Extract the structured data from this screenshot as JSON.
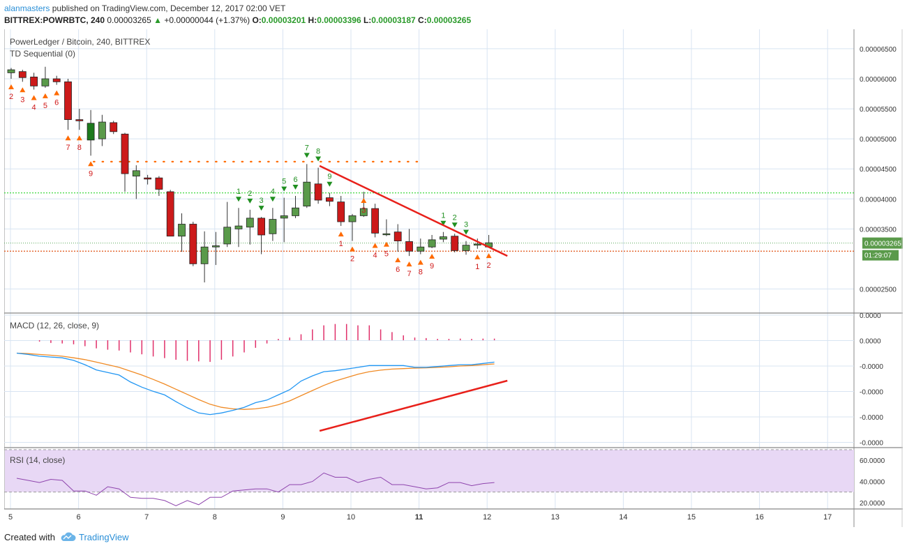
{
  "header": {
    "author": "alanmasters",
    "published_text": "published on TradingView.com, December 12, 2017 02:00 VET",
    "symbol": "BITTREX:POWRBTC, 240",
    "last_price": "0.00003265",
    "change": "+0.00000044 (+1.37%)",
    "o_label": "O:",
    "o_value": "0.00003201",
    "h_label": "H:",
    "h_value": "0.00003396",
    "l_label": "L:",
    "l_value": "0.00003187",
    "c_label": "C:",
    "c_value": "0.00003265"
  },
  "footer": {
    "created_with": "Created with",
    "brand": "TradingView"
  },
  "colors": {
    "up": "#5a9a4a",
    "down": "#cc1a1a",
    "green_dark": "#1d7a1d",
    "macd_line": "#2196f3",
    "signal_line": "#f08a24",
    "histogram": "#e0306a",
    "rsi_line": "#8e44ad",
    "rsi_band": "#e8d8f5",
    "trend": "#e8201a",
    "td_buy": "#ff6a00",
    "td_sell": "#1f8f1f",
    "grid": "#d8e4f2"
  },
  "chart_data": [
    {
      "type": "candlestick",
      "title": "PowerLedger / Bitcoin, 240, BITTREX",
      "indicator_title": "TD Sequential (0)",
      "x_ticks": [
        "5",
        "6",
        "7",
        "8",
        "9",
        "10",
        "11",
        "12",
        "13",
        "14",
        "15",
        "16",
        "17"
      ],
      "y_ticks": [
        "0.00006500",
        "0.00006000",
        "0.00005500",
        "0.00005000",
        "0.00004500",
        "0.00004000",
        "0.00003500",
        "0.00002500"
      ],
      "ylim": [
        2.1e-05,
        6.65e-05
      ],
      "last_price_label": "0.00003265",
      "countdown_label": "01:29:07",
      "candles": [
        {
          "o": 6.1,
          "h": 6.18,
          "l": 6.0,
          "c": 6.15
        },
        {
          "o": 6.12,
          "h": 6.15,
          "l": 5.95,
          "c": 6.02
        },
        {
          "o": 6.03,
          "h": 6.1,
          "l": 5.82,
          "c": 5.88
        },
        {
          "o": 5.88,
          "h": 6.2,
          "l": 5.85,
          "c": 6.0
        },
        {
          "o": 6.0,
          "h": 6.05,
          "l": 5.9,
          "c": 5.95
        },
        {
          "o": 5.95,
          "h": 6.0,
          "l": 5.15,
          "c": 5.32
        },
        {
          "o": 5.32,
          "h": 5.5,
          "l": 5.15,
          "c": 5.3
        },
        {
          "o": 4.98,
          "h": 5.48,
          "l": 4.72,
          "c": 5.26
        },
        {
          "o": 5.0,
          "h": 5.4,
          "l": 4.88,
          "c": 5.28
        },
        {
          "o": 5.27,
          "h": 5.3,
          "l": 5.08,
          "c": 5.12
        },
        {
          "o": 5.08,
          "h": 5.1,
          "l": 4.12,
          "c": 4.42
        },
        {
          "o": 4.38,
          "h": 4.56,
          "l": 4.0,
          "c": 4.47
        },
        {
          "o": 4.35,
          "h": 4.4,
          "l": 4.24,
          "c": 4.33
        },
        {
          "o": 4.35,
          "h": 4.38,
          "l": 4.05,
          "c": 4.16
        },
        {
          "o": 4.12,
          "h": 4.15,
          "l": 3.38,
          "c": 3.38
        },
        {
          "o": 3.38,
          "h": 3.76,
          "l": 3.12,
          "c": 3.58
        },
        {
          "o": 3.58,
          "h": 3.62,
          "l": 2.88,
          "c": 2.92
        },
        {
          "o": 2.92,
          "h": 3.46,
          "l": 2.61,
          "c": 3.2
        },
        {
          "o": 3.2,
          "h": 3.45,
          "l": 2.9,
          "c": 3.22
        },
        {
          "o": 3.25,
          "h": 3.95,
          "l": 3.2,
          "c": 3.53
        },
        {
          "o": 3.5,
          "h": 3.85,
          "l": 3.2,
          "c": 3.55
        },
        {
          "o": 3.53,
          "h": 3.82,
          "l": 3.24,
          "c": 3.68
        },
        {
          "o": 3.68,
          "h": 3.7,
          "l": 3.08,
          "c": 3.4
        },
        {
          "o": 3.42,
          "h": 3.85,
          "l": 3.3,
          "c": 3.66
        },
        {
          "o": 3.68,
          "h": 4.02,
          "l": 3.28,
          "c": 3.72
        },
        {
          "o": 3.72,
          "h": 4.05,
          "l": 3.68,
          "c": 3.85
        },
        {
          "o": 3.88,
          "h": 4.58,
          "l": 3.85,
          "c": 4.28
        },
        {
          "o": 4.25,
          "h": 4.52,
          "l": 3.92,
          "c": 3.98
        },
        {
          "o": 4.02,
          "h": 4.1,
          "l": 3.88,
          "c": 3.96
        },
        {
          "o": 3.95,
          "h": 4.05,
          "l": 3.55,
          "c": 3.62
        },
        {
          "o": 3.62,
          "h": 3.75,
          "l": 3.3,
          "c": 3.72
        },
        {
          "o": 3.72,
          "h": 4.12,
          "l": 3.7,
          "c": 3.84
        },
        {
          "o": 3.84,
          "h": 3.92,
          "l": 3.36,
          "c": 3.43
        },
        {
          "o": 3.42,
          "h": 3.66,
          "l": 3.38,
          "c": 3.42
        },
        {
          "o": 3.45,
          "h": 3.58,
          "l": 3.12,
          "c": 3.3
        },
        {
          "o": 3.29,
          "h": 3.5,
          "l": 3.05,
          "c": 3.13
        },
        {
          "o": 3.13,
          "h": 3.34,
          "l": 3.08,
          "c": 3.2
        },
        {
          "o": 3.2,
          "h": 3.4,
          "l": 3.18,
          "c": 3.32
        },
        {
          "o": 3.33,
          "h": 3.45,
          "l": 3.28,
          "c": 3.37
        },
        {
          "o": 3.38,
          "h": 3.42,
          "l": 3.11,
          "c": 3.14
        },
        {
          "o": 3.14,
          "h": 3.3,
          "l": 3.07,
          "c": 3.23
        },
        {
          "o": 3.23,
          "h": 3.34,
          "l": 3.17,
          "c": 3.25
        },
        {
          "o": 3.2,
          "h": 3.4,
          "l": 3.19,
          "c": 3.27
        }
      ],
      "td_buy": [
        [
          0,
          "2"
        ],
        [
          1,
          "3"
        ],
        [
          2,
          "4"
        ],
        [
          3,
          "5"
        ],
        [
          4,
          "6"
        ],
        [
          5,
          "7"
        ],
        [
          6,
          "8"
        ],
        [
          7,
          "9"
        ],
        [
          29,
          "1"
        ],
        [
          30,
          "2"
        ],
        [
          32,
          "4"
        ],
        [
          33,
          "5"
        ],
        [
          34,
          "6"
        ],
        [
          35,
          "7"
        ],
        [
          36,
          "8"
        ],
        [
          37,
          "9"
        ],
        [
          41,
          "1"
        ],
        [
          42,
          "2"
        ]
      ],
      "td_sell": [
        [
          20,
          "1"
        ],
        [
          21,
          "2"
        ],
        [
          22,
          "3"
        ],
        [
          23,
          "4"
        ],
        [
          24,
          "5"
        ],
        [
          25,
          "6"
        ],
        [
          26,
          "7"
        ],
        [
          27,
          "8"
        ],
        [
          28,
          "9"
        ],
        [
          38,
          "1"
        ],
        [
          39,
          "2"
        ],
        [
          40,
          "3"
        ]
      ],
      "td_buy_low_label": [
        [
          31,
          "3"
        ]
      ]
    },
    {
      "type": "line",
      "title": "MACD (12, 26, close, 9)",
      "y_ticks": [
        "0.0000",
        "0.0000",
        "-0.0000",
        "-0.0000",
        "-0.0000",
        "-0.0000"
      ],
      "macd": [
        -0.5,
        -0.55,
        -0.62,
        -0.65,
        -0.68,
        -0.78,
        -0.95,
        -1.15,
        -1.25,
        -1.35,
        -1.62,
        -1.82,
        -1.98,
        -2.12,
        -2.38,
        -2.62,
        -2.82,
        -2.88,
        -2.82,
        -2.72,
        -2.6,
        -2.42,
        -2.32,
        -2.12,
        -1.92,
        -1.58,
        -1.38,
        -1.22,
        -1.18,
        -1.12,
        -1.05,
        -0.98,
        -0.98,
        -0.98,
        -0.98,
        -1.05,
        -1.05,
        -1.02,
        -0.98,
        -0.95,
        -0.95,
        -0.9,
        -0.85
      ],
      "signal": [
        -0.5,
        -0.52,
        -0.55,
        -0.58,
        -0.62,
        -0.68,
        -0.75,
        -0.85,
        -0.95,
        -1.05,
        -1.2,
        -1.35,
        -1.52,
        -1.7,
        -1.9,
        -2.1,
        -2.3,
        -2.48,
        -2.6,
        -2.66,
        -2.68,
        -2.66,
        -2.6,
        -2.5,
        -2.35,
        -2.15,
        -1.95,
        -1.75,
        -1.58,
        -1.45,
        -1.32,
        -1.22,
        -1.16,
        -1.12,
        -1.1,
        -1.08,
        -1.07,
        -1.05,
        -1.03,
        -1.0,
        -0.98,
        -0.95,
        -0.92
      ],
      "histogram": [
        0,
        0,
        -0.05,
        -0.1,
        -0.12,
        -0.15,
        -0.22,
        -0.3,
        -0.35,
        -0.38,
        -0.45,
        -0.52,
        -0.6,
        -0.66,
        -0.72,
        -0.76,
        -0.78,
        -0.8,
        -0.72,
        -0.6,
        -0.45,
        -0.28,
        -0.12,
        0.05,
        0.1,
        0.22,
        0.4,
        0.55,
        0.6,
        0.6,
        0.55,
        0.55,
        0.4,
        0.3,
        0.18,
        0.1,
        0.08,
        0.05,
        0.05,
        0.06,
        0.05,
        0.06,
        0.06
      ]
    },
    {
      "type": "line",
      "title": "RSI (14, close)",
      "y_ticks": [
        "60.0000",
        "40.0000",
        "20.0000"
      ],
      "ylim": [
        14,
        72
      ],
      "rsi": [
        43,
        41,
        39,
        42,
        41,
        31,
        31,
        27,
        35,
        33,
        25,
        24,
        24,
        22,
        17,
        22,
        18,
        25,
        25,
        31,
        32,
        33,
        33,
        30,
        37,
        37,
        40,
        48,
        44,
        44,
        39,
        42,
        44,
        37,
        37,
        35,
        33,
        34,
        39,
        39,
        36,
        38,
        39
      ]
    }
  ]
}
